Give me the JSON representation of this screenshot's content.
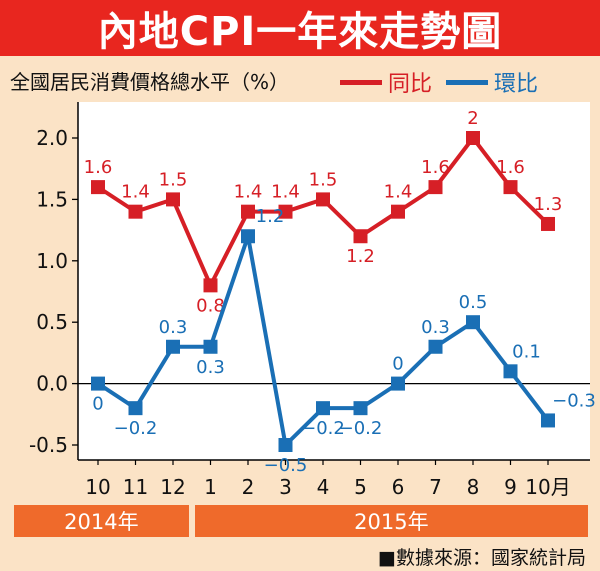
{
  "title": "內地CPI一年來走勢圖",
  "source": "■數據來源：國家統計局",
  "colors": {
    "yoy": "#d61f26",
    "mom": "#1a6fb5",
    "title_bg": "#e8261f",
    "band": "#ef6a2b",
    "bg": "#fbe3c6"
  },
  "chart_data": {
    "type": "line",
    "ylabel": "全國居民消費價格總水平（%）",
    "categories": [
      "10",
      "11",
      "12",
      "1",
      "2",
      "3",
      "4",
      "5",
      "6",
      "7",
      "8",
      "9",
      "10月"
    ],
    "year_groups": [
      {
        "label": "2014年",
        "span": [
          0,
          2
        ]
      },
      {
        "label": "2015年",
        "span": [
          3,
          12
        ]
      }
    ],
    "ylim": [
      -0.5,
      2.0
    ],
    "yticks": [
      "2.0",
      "1.5",
      "1.0",
      "0.5",
      "0.0",
      "-0.5"
    ],
    "series": [
      {
        "name": "同比",
        "values": [
          1.6,
          1.4,
          1.5,
          0.8,
          1.4,
          1.4,
          1.5,
          1.2,
          1.4,
          1.6,
          2.0,
          1.6,
          1.3
        ],
        "labels": [
          "1.6",
          "1.4",
          "1.5",
          "0.8",
          "1.4",
          "1.4",
          "1.5",
          "1.2",
          "1.4",
          "1.6",
          "2",
          "1.6",
          "1.3"
        ]
      },
      {
        "name": "環比",
        "values": [
          0.0,
          -0.2,
          0.3,
          0.3,
          1.2,
          -0.5,
          -0.2,
          -0.2,
          0.0,
          0.3,
          0.5,
          0.1,
          -0.3
        ],
        "labels": [
          "0",
          "−0.2",
          "0.3",
          "0.3",
          "1.2",
          "−0.5",
          "−0.2",
          "−0.2",
          "0",
          "0.3",
          "0.5",
          "0.1",
          "−0.3"
        ]
      }
    ]
  }
}
